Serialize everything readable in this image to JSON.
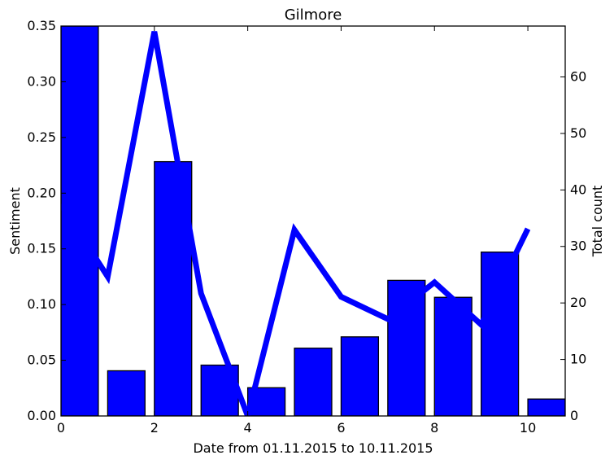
{
  "chart_data": {
    "type": "bar",
    "title": "Gilmore",
    "xlabel": "Date from 01.11.2015 to 10.11.2015",
    "ylabel": "Sentiment",
    "y2label": "Total count",
    "xlim": [
      0,
      10.8
    ],
    "ylim": [
      0,
      0.35
    ],
    "y2lim": [
      0,
      69
    ],
    "x_ticks": [
      0,
      2,
      4,
      6,
      8,
      10
    ],
    "x_tick_labels": [
      "0",
      "2",
      "4",
      "6",
      "8",
      "10"
    ],
    "y_ticks": [
      0.0,
      0.05,
      0.1,
      0.15,
      0.2,
      0.25,
      0.3,
      0.35
    ],
    "y_tick_labels": [
      "0.00",
      "0.05",
      "0.10",
      "0.15",
      "0.20",
      "0.25",
      "0.30",
      "0.35"
    ],
    "y2_ticks": [
      0,
      10,
      20,
      30,
      40,
      50,
      60
    ],
    "y2_tick_labels": [
      "0",
      "10",
      "20",
      "30",
      "40",
      "50",
      "60"
    ],
    "bar_width": 0.8,
    "bar_color": "#0000ff",
    "line_color": "#0000ff",
    "series": [
      {
        "kind": "line",
        "axis": "left",
        "x": [
          0,
          1,
          2,
          3,
          4,
          5,
          6,
          7,
          8,
          9,
          10
        ],
        "values": [
          0.19,
          0.125,
          0.345,
          0.11,
          0.0,
          0.167,
          0.107,
          0.087,
          0.12,
          0.082,
          0.168
        ]
      },
      {
        "kind": "bar",
        "axis": "right",
        "x": [
          0,
          1,
          2,
          3,
          4,
          5,
          6,
          7,
          8,
          9,
          10
        ],
        "values": [
          69,
          8,
          45,
          9,
          5,
          12,
          14,
          24,
          21,
          29,
          3
        ]
      }
    ]
  }
}
